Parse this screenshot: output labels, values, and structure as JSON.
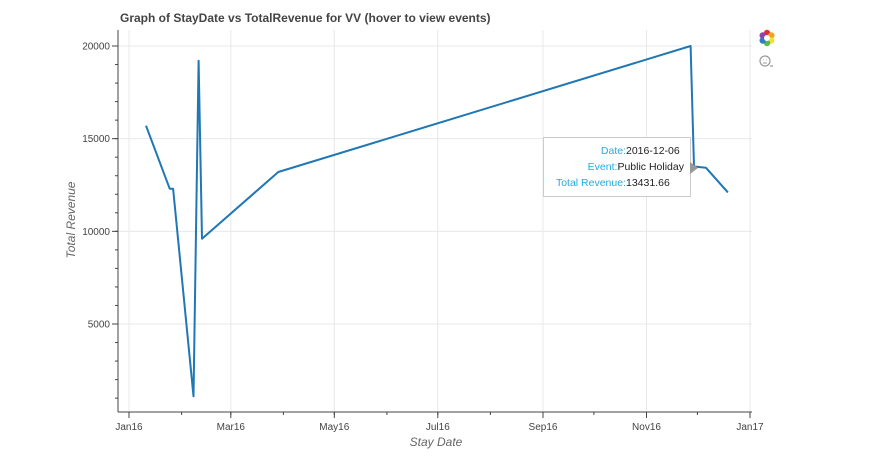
{
  "chart_data": {
    "type": "line",
    "title": "Graph of StayDate vs TotalRevenue for VV (hover to view events)",
    "xlabel": "Stay Date",
    "ylabel": "Total Revenue",
    "x_ticks": [
      "Jan16",
      "Mar16",
      "May16",
      "Jul16",
      "Sep16",
      "Nov16",
      "Jan17"
    ],
    "y_ticks": [
      "5000",
      "10000",
      "15000",
      "20000"
    ],
    "ylim": [
      0,
      20000
    ],
    "grid": true,
    "series": [
      {
        "color": "#1f77b4",
        "points": [
          {
            "x": "2016-01-11",
            "y": 15700
          },
          {
            "x": "2016-01-25",
            "y": 12300
          },
          {
            "x": "2016-01-27",
            "y": 12300
          },
          {
            "x": "2016-02-08",
            "y": 1100
          },
          {
            "x": "2016-02-11",
            "y": 19200
          },
          {
            "x": "2016-02-13",
            "y": 9600
          },
          {
            "x": "2016-03-29",
            "y": 13200
          },
          {
            "x": "2016-11-27",
            "y": 20000
          },
          {
            "x": "2016-11-29",
            "y": 13500
          },
          {
            "x": "2016-12-06",
            "y": 13431.66
          },
          {
            "x": "2016-12-19",
            "y": 12100
          }
        ]
      }
    ]
  },
  "tooltip": {
    "date_label": "Date:",
    "date_value": "2016-12-06",
    "event_label": "Event:",
    "event_value": "Public Holiday",
    "revenue_label": "Total Revenue:",
    "revenue_value": "13431.66"
  },
  "toolbar": {
    "logo_icon": "bokeh-logo-icon",
    "hover_icon": "hover-tool-icon"
  }
}
